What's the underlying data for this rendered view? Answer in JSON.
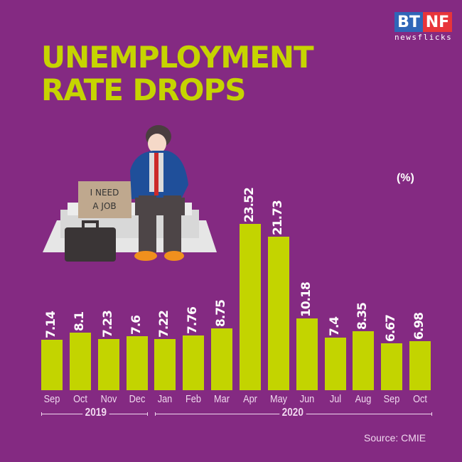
{
  "header": {
    "title_line1": "UNEMPLOYMENT",
    "title_line2": "RATE DROPS",
    "logo_left": "BT",
    "logo_right": "NF",
    "logo_sub": "newsflicks"
  },
  "illustration": {
    "sign_line1": "I NEED",
    "sign_line2": "A JOB"
  },
  "unit_label": "(%)",
  "source": "Source: CMIE",
  "colors": {
    "background": "#842a82",
    "bar": "#c3d400",
    "title": "#c6d400",
    "text": "#ffffff"
  },
  "chart_data": {
    "type": "bar",
    "title": "UNEMPLOYMENT RATE DROPS",
    "ylabel": "(%)",
    "xlabel": "",
    "categories": [
      "Sep",
      "Oct",
      "Nov",
      "Dec",
      "Jan",
      "Feb",
      "Mar",
      "Apr",
      "May",
      "Jun",
      "Jul",
      "Aug",
      "Sep",
      "Oct"
    ],
    "year_groups": [
      {
        "label": "2019",
        "months": [
          "Sep",
          "Oct",
          "Nov",
          "Dec"
        ]
      },
      {
        "label": "2020",
        "months": [
          "Jan",
          "Feb",
          "Mar",
          "Apr",
          "May",
          "Jun",
          "Jul",
          "Aug",
          "Sep",
          "Oct"
        ]
      }
    ],
    "values": [
      7.14,
      8.1,
      7.23,
      7.6,
      7.22,
      7.76,
      8.75,
      23.52,
      21.73,
      10.18,
      7.4,
      8.35,
      6.67,
      6.98
    ],
    "value_labels": [
      "7.14",
      "8.1",
      "7.23",
      "7.6",
      "7.22",
      "7.76",
      "8.75",
      "23.52",
      "21.73",
      "10.18",
      "7.4",
      "8.35",
      "6.67",
      "6.98"
    ],
    "ylim": [
      0,
      25
    ],
    "grid": false,
    "legend": "none",
    "source": "CMIE"
  }
}
